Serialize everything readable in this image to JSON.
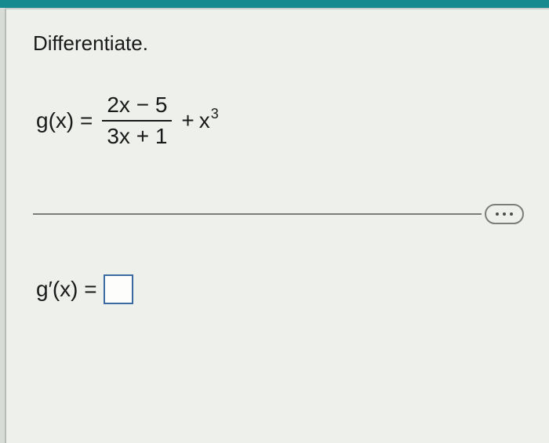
{
  "instruction": "Differentiate.",
  "equation": {
    "lhs": "g(x) =",
    "numerator": "2x − 5",
    "denominator": "3x + 1",
    "plus": "+",
    "term_base": "x",
    "term_exp": "3"
  },
  "answer": {
    "lhs": "g′(x) ="
  },
  "colors": {
    "top_bar": "#178a8f",
    "card_bg": "#eef0ec",
    "page_bg": "#d8dcd7",
    "text": "#1a1a1a",
    "divider": "#7a7e78",
    "box_border": "#3a6aa0"
  }
}
